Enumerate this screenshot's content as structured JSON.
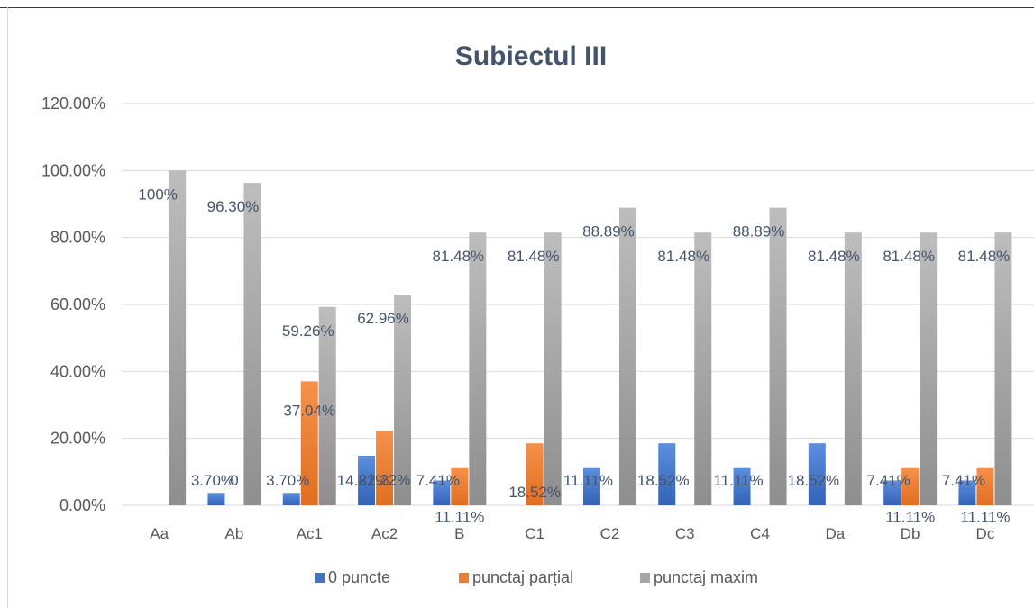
{
  "chart_data": {
    "type": "bar",
    "title": "Subiectul III",
    "xlabel": "",
    "ylabel": "",
    "categories": [
      "Aa",
      "Ab",
      "Ac1",
      "Ac2",
      "B",
      "C1",
      "C2",
      "C3",
      "C4",
      "Da",
      "Db",
      "Dc"
    ],
    "ylim": [
      0,
      1.2
    ],
    "yticks": [
      "0.00%",
      "20.00%",
      "40.00%",
      "60.00%",
      "80.00%",
      "100.00%",
      "120.00%"
    ],
    "grid": true,
    "legend_position": "bottom",
    "series": [
      {
        "name": "0 puncte",
        "color": "#4472c4",
        "values": [
          0,
          0.037,
          0.037,
          0.1481,
          0.0741,
          0,
          0.1111,
          0.1852,
          0.1111,
          0.1852,
          0.0741,
          0.0741
        ],
        "labels": [
          "",
          "3.70%",
          "3.70%",
          "14.81%",
          "7.41%",
          "",
          "11.11%",
          "18.52%",
          "11.11%",
          "18.52%",
          "7.41%",
          "7.41%"
        ]
      },
      {
        "name": "punctaj parțial",
        "color": "#ed7d31",
        "values": [
          0,
          0,
          0.3704,
          0.2222,
          0.1111,
          0.1852,
          0,
          0,
          0,
          0,
          0.1111,
          0.1111
        ],
        "labels": [
          "",
          "0",
          "37.04%",
          "22.22%",
          "11.11%",
          "18.52%",
          "",
          "",
          "",
          "",
          "11.11%",
          "11.11%"
        ]
      },
      {
        "name": "punctaj maxim",
        "color": "#a5a5a5",
        "values": [
          1.0,
          0.963,
          0.5926,
          0.6296,
          0.8148,
          0.8148,
          0.8889,
          0.8148,
          0.8889,
          0.8148,
          0.8148,
          0.8148
        ],
        "labels": [
          "100%",
          "96.30%",
          "59.26%",
          "62.96%",
          "81.48%",
          "81.48%",
          "88.89%",
          "81.48%",
          "88.89%",
          "81.48%",
          "81.48%",
          "81.48%"
        ]
      }
    ]
  }
}
